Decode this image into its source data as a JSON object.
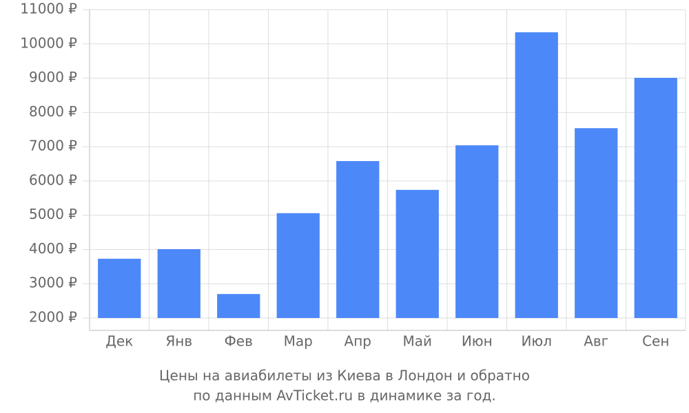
{
  "chart_data": {
    "type": "bar",
    "caption": [
      "Цены на авиабилеты из Киева в Лондон и обратно",
      "по данным AvTicket.ru в динамике за год."
    ],
    "categories": [
      "Дек",
      "Янв",
      "Фев",
      "Мар",
      "Апр",
      "Май",
      "Июн",
      "Июл",
      "Авг",
      "Сен"
    ],
    "values": [
      3730,
      4010,
      2700,
      5060,
      6580,
      5740,
      7040,
      10340,
      7540,
      9010
    ],
    "color": "#4d88f9",
    "ylim": [
      2000,
      11000
    ],
    "yticks": [
      {
        "value": 2000,
        "label": "2000 ₽"
      },
      {
        "value": 3000,
        "label": "3000 ₽"
      },
      {
        "value": 4000,
        "label": "4000 ₽"
      },
      {
        "value": 5000,
        "label": "5000 ₽"
      },
      {
        "value": 6000,
        "label": "6000 ₽"
      },
      {
        "value": 7000,
        "label": "7000 ₽"
      },
      {
        "value": 8000,
        "label": "8000 ₽"
      },
      {
        "value": 9000,
        "label": "9000 ₽"
      },
      {
        "value": 10000,
        "label": "10000 ₽"
      },
      {
        "value": 11000,
        "label": "11000 ₽"
      }
    ],
    "grid": true
  }
}
